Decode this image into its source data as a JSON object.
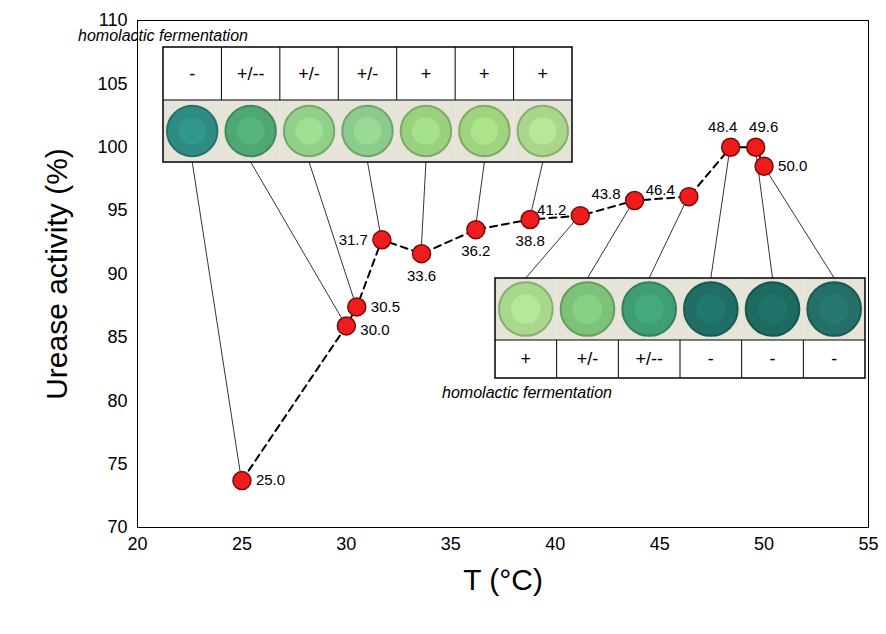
{
  "chart_data": {
    "type": "line",
    "xlabel": "T (°C)",
    "ylabel": "Urease activity (%)",
    "x": [
      25.0,
      30.0,
      30.5,
      31.7,
      33.6,
      36.2,
      38.8,
      41.2,
      43.8,
      46.4,
      48.4,
      49.6,
      50.0
    ],
    "values": [
      73.7,
      85.9,
      87.4,
      92.7,
      91.6,
      93.5,
      94.3,
      94.6,
      95.8,
      96.1,
      100,
      100,
      98.5
    ],
    "point_labels": [
      "25.0",
      "30.0",
      "30.5",
      "31.7",
      "33.6",
      "36.2",
      "38.8",
      "41.2",
      "43.8",
      "46.4",
      "48.4",
      "49.6",
      "50.0"
    ],
    "color": "#ee1c1c",
    "marker": "circle",
    "line_style": "dashed",
    "xlim": [
      20,
      55
    ],
    "xticks": [
      20,
      25,
      30,
      35,
      40,
      45,
      50,
      55
    ],
    "ylim": [
      70,
      110
    ],
    "yticks": [
      70,
      75,
      80,
      85,
      90,
      95,
      100,
      105,
      110
    ],
    "grid": false,
    "annotations": [
      {
        "text": "homolactic fermentation",
        "results": [
          "-",
          "+/--",
          "+/-",
          "+/-",
          "+",
          "+",
          "+"
        ],
        "x": [
          25.0,
          30.0,
          30.5,
          31.7,
          33.6,
          36.2,
          38.8
        ],
        "colors": [
          "#2e8c84",
          "#4fa873",
          "#92cf88",
          "#8ccb8b",
          "#9ad17f",
          "#a0d37f",
          "#aad68c"
        ]
      },
      {
        "text": "homolactic fermentation",
        "results": [
          "+",
          "+/-",
          "+/--",
          "-",
          "-",
          "-"
        ],
        "x": [
          41.2,
          43.8,
          46.4,
          48.4,
          49.6,
          50.0
        ],
        "colors": [
          "#a8d78d",
          "#7dc278",
          "#3f9e74",
          "#1f6f66",
          "#1c6a60",
          "#246f67"
        ]
      }
    ]
  }
}
